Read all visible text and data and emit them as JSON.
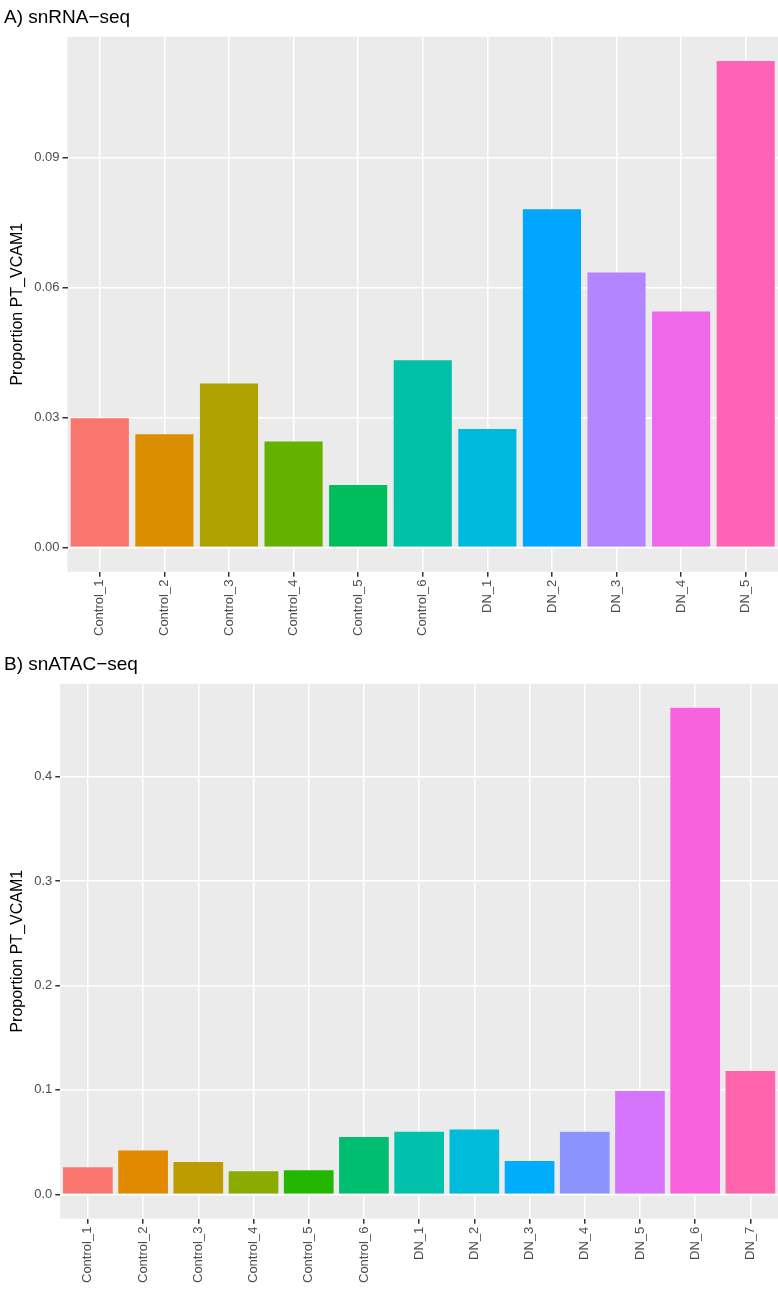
{
  "chart_data": [
    {
      "type": "bar",
      "title": "A) snRNA−seq",
      "ylabel": "Proportion PT_VCAM1",
      "categories": [
        "Control_1",
        "Control_2",
        "Control_3",
        "Control_4",
        "Control_5",
        "Control_6",
        "DN_1",
        "DN_2",
        "DN_3",
        "DN_4",
        "DN_5"
      ],
      "values": [
        0.0298,
        0.0261,
        0.0378,
        0.0244,
        0.0144,
        0.0432,
        0.0273,
        0.078,
        0.0634,
        0.0544,
        0.1122
      ],
      "colors": [
        "#f8766d",
        "#db8e00",
        "#aea200",
        "#64b200",
        "#00bd5c",
        "#00c1a7",
        "#00bade",
        "#00a6ff",
        "#b385ff",
        "#ef67eb",
        "#ff63b6"
      ],
      "ylim": [
        -0.0056,
        0.1178
      ],
      "yticks": [
        {
          "value": 0,
          "label": "0.00"
        },
        {
          "value": 0.03,
          "label": "0.03"
        },
        {
          "value": 0.06,
          "label": "0.06"
        },
        {
          "value": 0.09,
          "label": "0.09"
        }
      ],
      "grid": true,
      "legend": false
    },
    {
      "type": "bar",
      "title": "B) snATAC−seq",
      "ylabel": "Proportion PT_VCAM1",
      "categories": [
        "Control_1",
        "Control_2",
        "Control_3",
        "Control_4",
        "Control_5",
        "Control_6",
        "DN_1",
        "DN_2",
        "DN_3",
        "DN_4",
        "DN_5",
        "DN_6",
        "DN_7"
      ],
      "values": [
        0.026,
        0.042,
        0.031,
        0.022,
        0.023,
        0.055,
        0.06,
        0.062,
        0.032,
        0.06,
        0.099,
        0.466,
        0.118
      ],
      "colors": [
        "#f8766d",
        "#e18a00",
        "#be9c00",
        "#8cab00",
        "#24b700",
        "#00be70",
        "#00c1ab",
        "#00bbda",
        "#00acfc",
        "#8b93ff",
        "#d575fe",
        "#f962dd",
        "#ff65ac"
      ],
      "ylim": [
        -0.0233,
        0.489
      ],
      "yticks": [
        {
          "value": 0,
          "label": "0.0"
        },
        {
          "value": 0.1,
          "label": "0.1"
        },
        {
          "value": 0.2,
          "label": "0.2"
        },
        {
          "value": 0.3,
          "label": "0.3"
        },
        {
          "value": 0.4,
          "label": "0.4"
        }
      ],
      "grid": true,
      "legend": false
    }
  ]
}
